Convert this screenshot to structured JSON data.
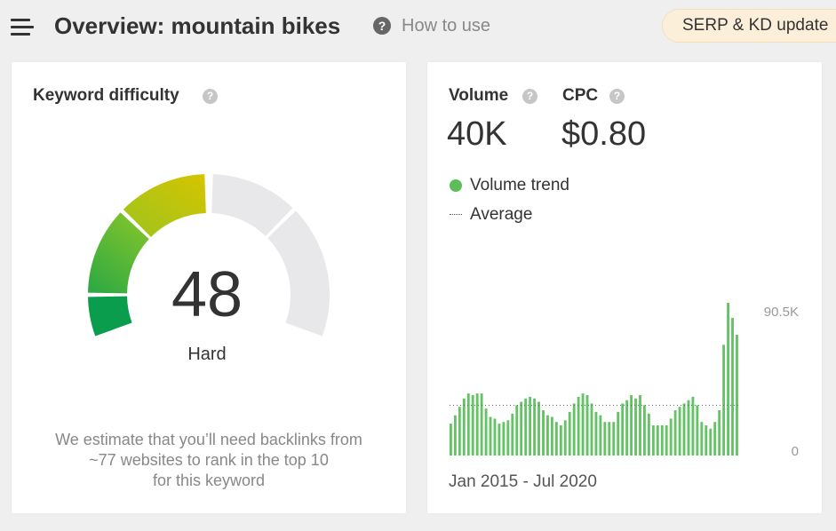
{
  "header": {
    "title": "Overview: mountain bikes",
    "help_glyph": "?",
    "how_to_use": "How to use",
    "serp_badge": "SERP & KD update"
  },
  "keyword_difficulty": {
    "label": "Keyword difficulty",
    "help_glyph": "?",
    "score": "48",
    "level": "Hard",
    "note_line1": "We estimate that you’ll need backlinks from",
    "note_line2": "~77 websites to rank in the top 10",
    "note_line3": "for this keyword",
    "colors": {
      "dark_green": "#0a9d4e",
      "green": "#5bb52e",
      "yellow": "#d4c300",
      "empty": "#e8e8ea"
    }
  },
  "volume_card": {
    "volume_label": "Volume",
    "volume_value": "40K",
    "cpc_label": "CPC",
    "cpc_value": "$0.80",
    "help_glyph": "?",
    "legend_trend": "Volume trend",
    "legend_average": "Average",
    "date_range": "Jan 2015 - Jul 2020"
  },
  "chart_data": {
    "type": "bar",
    "title": "",
    "xlabel": "",
    "ylabel": "",
    "y_ticks": [
      "90.5K",
      "0"
    ],
    "ylim": [
      0,
      90500
    ],
    "x_range": [
      "Jan 2015",
      "Jul 2020"
    ],
    "average": 30000,
    "bar_color": "#66c266",
    "series": [
      {
        "values": [
          19000,
          24000,
          29000,
          34000,
          37000,
          36000,
          37000,
          37000,
          28000,
          23000,
          22000,
          19000,
          20000,
          21000,
          25000,
          30000,
          32000,
          34000,
          35000,
          34000,
          32000,
          27000,
          24000,
          23000,
          20000,
          18000,
          21000,
          26000,
          31000,
          35000,
          37000,
          36000,
          31000,
          26000,
          24000,
          20000,
          20000,
          20000,
          26000,
          31000,
          33000,
          36000,
          34000,
          36000,
          30000,
          25000,
          18000,
          18000,
          18000,
          18000,
          22000,
          27000,
          29000,
          31000,
          33000,
          35000,
          30000,
          20000,
          18000,
          16000,
          20000,
          27000,
          66000,
          91000,
          82000,
          72000
        ]
      }
    ]
  }
}
